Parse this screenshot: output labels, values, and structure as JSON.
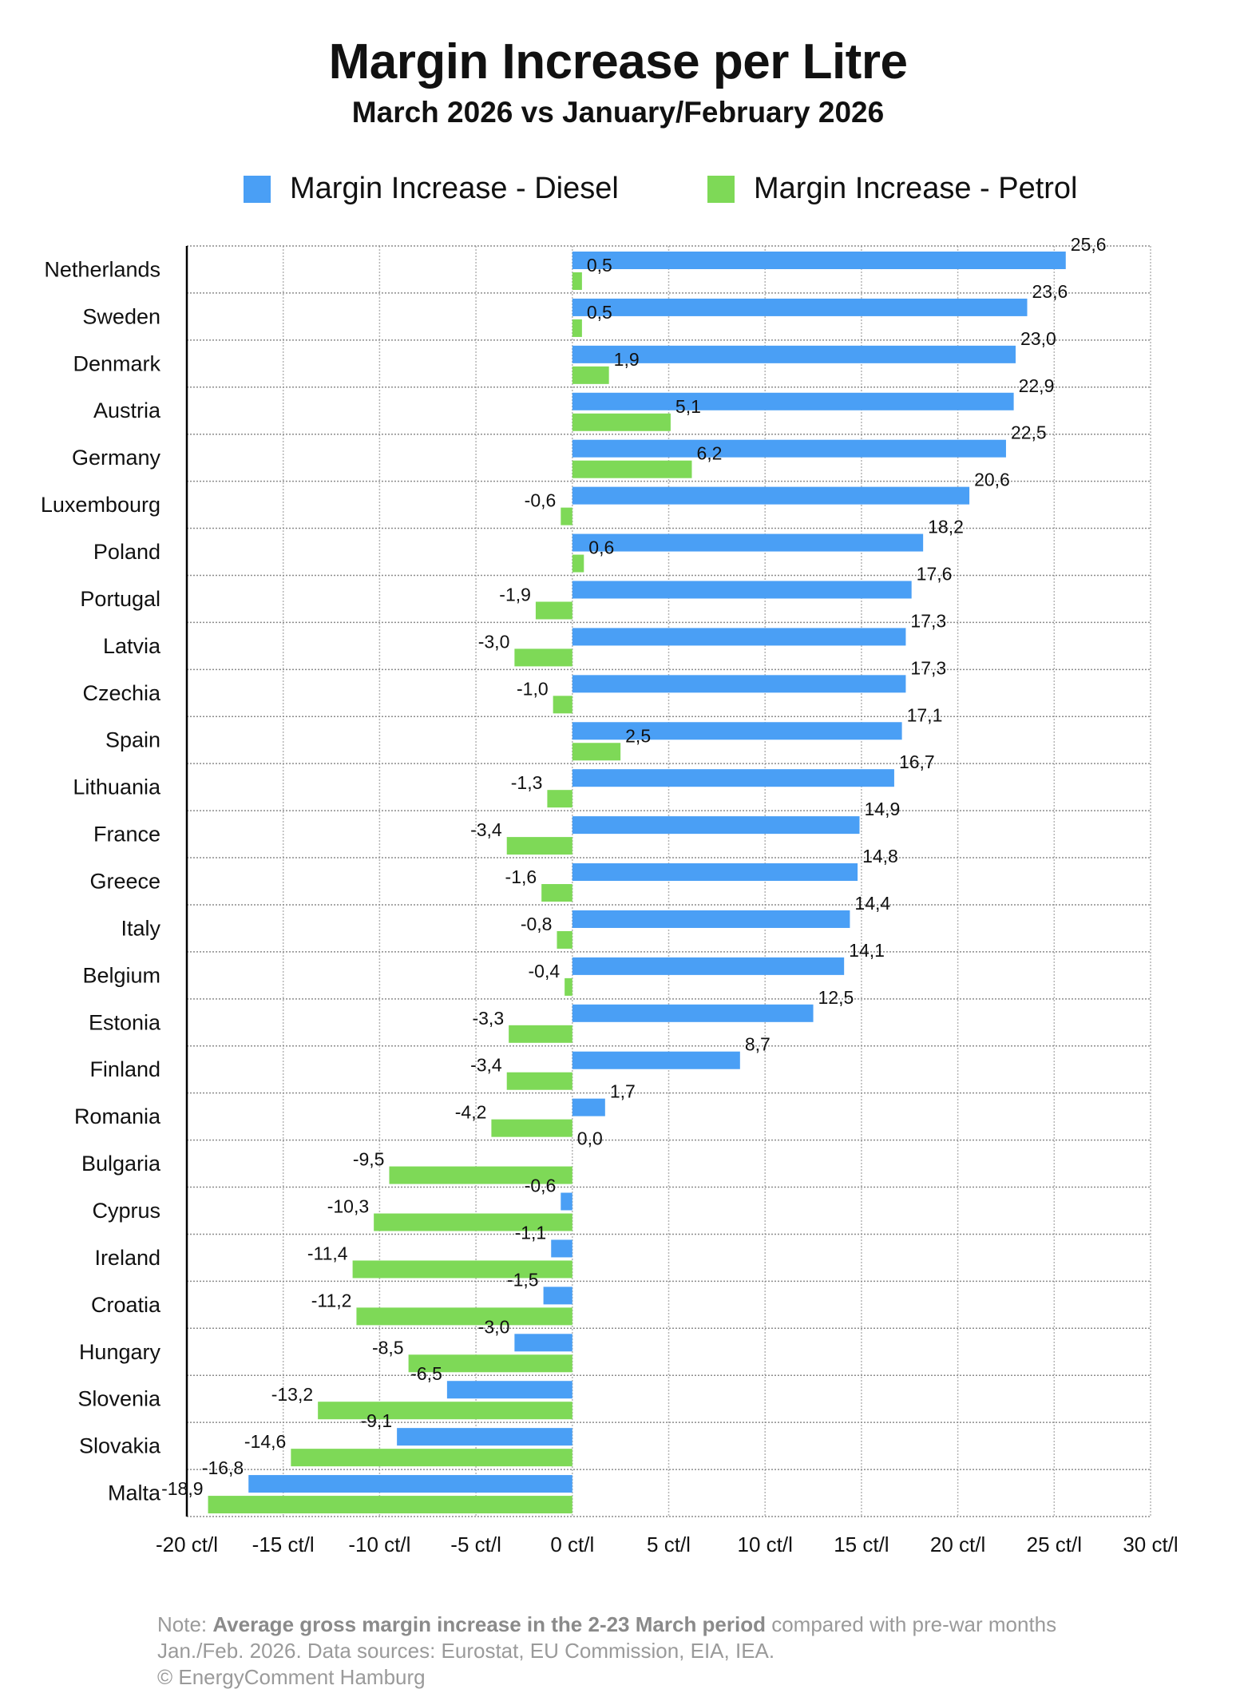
{
  "chart_data": {
    "type": "bar",
    "orientation": "horizontal",
    "title": "Margin Increase per Litre",
    "subtitle": "March 2026 vs January/February 2026",
    "categories": [
      "Netherlands",
      "Sweden",
      "Denmark",
      "Austria",
      "Germany",
      "Luxembourg",
      "Poland",
      "Portugal",
      "Latvia",
      "Czechia",
      "Spain",
      "Lithuania",
      "France",
      "Greece",
      "Italy",
      "Belgium",
      "Estonia",
      "Finland",
      "Romania",
      "Bulgaria",
      "Cyprus",
      "Ireland",
      "Croatia",
      "Hungary",
      "Slovenia",
      "Slovakia",
      "Malta"
    ],
    "series": [
      {
        "name": "Margin Increase - Diesel",
        "color": "#4a9ff5",
        "values": [
          25.6,
          23.6,
          23.0,
          22.9,
          22.5,
          20.6,
          18.2,
          17.6,
          17.3,
          17.3,
          17.1,
          16.7,
          14.9,
          14.8,
          14.4,
          14.1,
          12.5,
          8.7,
          1.7,
          0.0,
          -0.6,
          -1.1,
          -1.5,
          -3.0,
          -6.5,
          -9.1,
          -16.8
        ],
        "labels": [
          "25,6",
          "23,6",
          "23,0",
          "22,9",
          "22,5",
          "20,6",
          "18,2",
          "17,6",
          "17,3",
          "17,3",
          "17,1",
          "16,7",
          "14,9",
          "14,8",
          "14,4",
          "14,1",
          "12,5",
          "8,7",
          "1,7",
          "0,0",
          "-0,6",
          "-1,1",
          "-1,5",
          "-3,0",
          "-6,5",
          "-9,1",
          "-16,8"
        ]
      },
      {
        "name": "Margin Increase - Petrol",
        "color": "#7ed957",
        "values": [
          0.5,
          0.5,
          1.9,
          5.1,
          6.2,
          -0.6,
          0.6,
          -1.9,
          -3.0,
          -1.0,
          2.5,
          -1.3,
          -3.4,
          -1.6,
          -0.8,
          -0.4,
          -3.3,
          -3.4,
          -4.2,
          -9.5,
          -10.3,
          -11.4,
          -11.2,
          -8.5,
          -13.2,
          -14.6,
          -18.9
        ],
        "labels": [
          "0,5",
          "0,5",
          "1,9",
          "5,1",
          "6,2",
          "-0,6",
          "0,6",
          "-1,9",
          "-3,0",
          "-1,0",
          "2,5",
          "-1,3",
          "-3,4",
          "-1,6",
          "-0,8",
          "-0,4",
          "-3,3",
          "-3,4",
          "-4,2",
          "-9,5",
          "-10,3",
          "-11,4",
          "-11,2",
          "-8,5",
          "-13,2",
          "-14,6",
          "-18,9"
        ]
      }
    ],
    "xlim": [
      -20,
      30
    ],
    "xticks": [
      -20,
      -15,
      -10,
      -5,
      0,
      5,
      10,
      15,
      20,
      25,
      30
    ],
    "xtick_labels": [
      "-20 ct/l",
      "-15 ct/l",
      "-10 ct/l",
      "-5 ct/l",
      "0 ct/l",
      "5 ct/l",
      "10 ct/l",
      "15 ct/l",
      "20 ct/l",
      "25 ct/l",
      "30 ct/l"
    ],
    "xlabel": "",
    "ylabel": "",
    "grid": true,
    "legend_position": "top-center"
  },
  "note": {
    "prefix": "Note: ",
    "bold": "Average gross margin increase in the 2-23 March period",
    "line1_rest": " compared with pre-war months",
    "line2": "Jan./Feb. 2026.  Data sources: Eurostat, EU Commission, EIA, IEA.",
    "line3": "© EnergyComment Hamburg"
  }
}
